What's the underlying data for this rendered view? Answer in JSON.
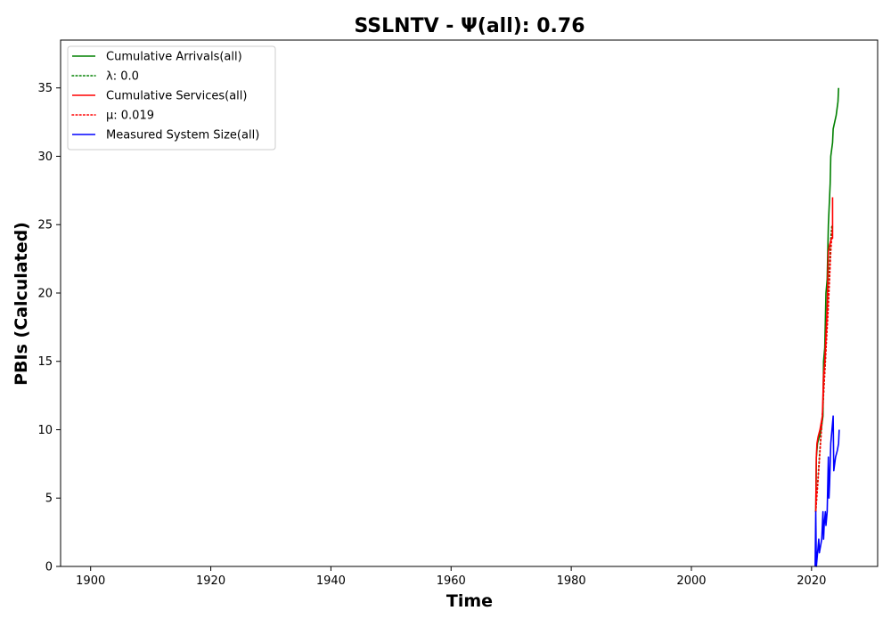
{
  "chart_data": {
    "type": "line",
    "title": "SSLNTV -  Ψ(all): 0.76",
    "xlabel": "Time",
    "ylabel": "PBIs (Calculated)",
    "xlim": [
      1895,
      2031
    ],
    "ylim": [
      0,
      38.5
    ],
    "x_ticks": [
      1900,
      1920,
      1940,
      1960,
      1980,
      2000,
      2020
    ],
    "y_ticks": [
      0,
      5,
      10,
      15,
      20,
      25,
      30,
      35
    ],
    "grid": false,
    "legend_position": "upper-left",
    "legend": [
      {
        "label": "Cumulative Arrivals(all)",
        "color": "#008000",
        "style": "solid"
      },
      {
        "label": "λ: 0.0",
        "color": "#008000",
        "style": "dotted"
      },
      {
        "label": "Cumulative Services(all)",
        "color": "#ff0000",
        "style": "solid"
      },
      {
        "label": "μ: 0.019",
        "color": "#ff0000",
        "style": "dotted"
      },
      {
        "label": "Measured System Size(all)",
        "color": "#0000ff",
        "style": "solid"
      }
    ],
    "series": [
      {
        "name": "Cumulative Arrivals(all)",
        "color": "#008000",
        "style": "solid",
        "points": [
          [
            2020.7,
            4
          ],
          [
            2020.8,
            8
          ],
          [
            2021.0,
            9
          ],
          [
            2021.3,
            9.5
          ],
          [
            2021.6,
            10
          ],
          [
            2021.9,
            11
          ],
          [
            2022.0,
            15
          ],
          [
            2022.2,
            16
          ],
          [
            2022.3,
            18
          ],
          [
            2022.4,
            20
          ],
          [
            2022.6,
            21
          ],
          [
            2022.8,
            25
          ],
          [
            2023.0,
            27
          ],
          [
            2023.1,
            28
          ],
          [
            2023.2,
            30
          ],
          [
            2023.5,
            31
          ],
          [
            2023.6,
            32
          ],
          [
            2024.1,
            33
          ],
          [
            2024.4,
            34
          ],
          [
            2024.5,
            35
          ]
        ]
      },
      {
        "name": "λ: 0.0",
        "color": "#008000",
        "style": "dotted",
        "points": [
          [
            2020.7,
            4
          ],
          [
            2021.3,
            8
          ],
          [
            2021.8,
            11
          ],
          [
            2022.3,
            15
          ],
          [
            2022.6,
            18
          ],
          [
            2022.9,
            21
          ],
          [
            2023.2,
            24
          ],
          [
            2023.4,
            25
          ]
        ]
      },
      {
        "name": "Cumulative Services(all)",
        "color": "#ff0000",
        "style": "solid",
        "points": [
          [
            2020.7,
            4
          ],
          [
            2020.8,
            8
          ],
          [
            2020.9,
            9
          ],
          [
            2021.1,
            9.5
          ],
          [
            2021.4,
            10
          ],
          [
            2021.8,
            11
          ],
          [
            2022.0,
            14
          ],
          [
            2022.2,
            15
          ],
          [
            2022.4,
            17
          ],
          [
            2022.5,
            18
          ],
          [
            2022.6,
            19
          ],
          [
            2022.8,
            23
          ],
          [
            2023.0,
            23.5
          ],
          [
            2023.3,
            24
          ],
          [
            2023.5,
            24
          ],
          [
            2023.5,
            27
          ]
        ]
      },
      {
        "name": "μ: 0.019",
        "color": "#ff0000",
        "style": "dotted",
        "points": [
          [
            2020.7,
            4
          ],
          [
            2021.2,
            7
          ],
          [
            2021.8,
            11
          ],
          [
            2022.3,
            15
          ],
          [
            2022.8,
            19
          ],
          [
            2023.2,
            23
          ],
          [
            2023.5,
            25
          ]
        ]
      },
      {
        "name": "Measured System Size(all)",
        "color": "#0000ff",
        "style": "solid",
        "points": [
          [
            2020.6,
            0
          ],
          [
            2020.7,
            4
          ],
          [
            2020.8,
            0
          ],
          [
            2021.0,
            1
          ],
          [
            2021.2,
            2
          ],
          [
            2021.3,
            1
          ],
          [
            2021.5,
            1.5
          ],
          [
            2021.7,
            2
          ],
          [
            2021.9,
            4
          ],
          [
            2022.0,
            2
          ],
          [
            2022.1,
            3
          ],
          [
            2022.3,
            4
          ],
          [
            2022.4,
            3
          ],
          [
            2022.6,
            4
          ],
          [
            2022.8,
            8
          ],
          [
            2022.9,
            5
          ],
          [
            2023.0,
            6
          ],
          [
            2023.2,
            9
          ],
          [
            2023.4,
            10
          ],
          [
            2023.6,
            11
          ],
          [
            2023.7,
            7
          ],
          [
            2024.0,
            8
          ],
          [
            2024.3,
            8.5
          ],
          [
            2024.5,
            9
          ],
          [
            2024.6,
            10
          ]
        ]
      }
    ]
  }
}
